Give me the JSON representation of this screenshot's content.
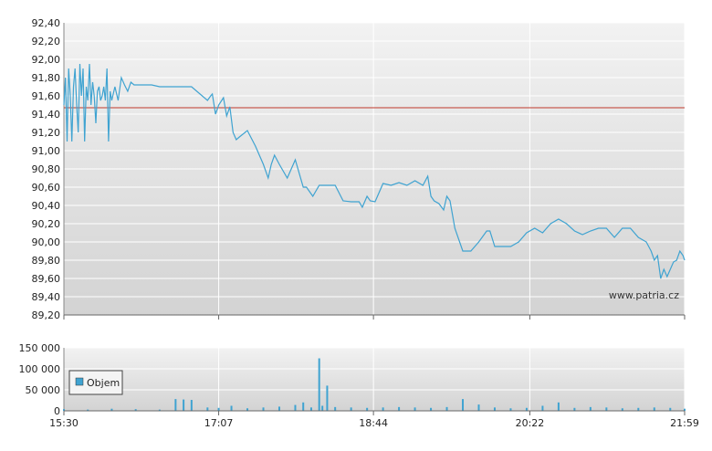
{
  "watermark": "www.patria.cz",
  "colors": {
    "price_line": "#3fa3d1",
    "reference_line": "#c0392b",
    "volume_bar": "#3fa3d1",
    "grid": "#ffffff",
    "plot_bg_top": "#f2f2f2",
    "plot_bg_bottom": "#d3d3d3"
  },
  "chart_data": [
    {
      "type": "line",
      "panel": "price",
      "ylim": [
        89.2,
        92.4
      ],
      "y_ticks": [
        "92,40",
        "92,20",
        "92,00",
        "91,80",
        "91,60",
        "91,40",
        "91,20",
        "91,00",
        "90,80",
        "90,60",
        "90,40",
        "90,20",
        "90,00",
        "89,80",
        "89,60",
        "89,40",
        "89,20"
      ],
      "x_ticks": [
        "15:30",
        "17:07",
        "18:44",
        "20:22",
        "21:59"
      ],
      "reference_value": 91.47,
      "series": [
        {
          "x": [
            "15:30",
            "15:31",
            "15:32",
            "15:33",
            "15:34",
            "15:35",
            "15:36",
            "15:37",
            "15:38",
            "15:39",
            "15:40",
            "15:41",
            "15:42",
            "15:43",
            "15:44",
            "15:45",
            "15:46",
            "15:47",
            "15:48",
            "15:49",
            "15:50",
            "15:51",
            "15:52",
            "15:53",
            "15:54",
            "15:55",
            "15:56",
            "15:57",
            "15:58",
            "15:59",
            "16:00",
            "16:02",
            "16:04",
            "16:06",
            "16:08",
            "16:10",
            "16:12",
            "16:14",
            "16:16",
            "16:20",
            "16:25",
            "16:30",
            "16:40",
            "16:50",
            "17:00",
            "17:02",
            "17:03",
            "17:05",
            "17:07",
            "17:10",
            "17:12",
            "17:14",
            "17:16",
            "17:18",
            "17:20",
            "17:25",
            "17:30",
            "17:35",
            "17:38",
            "17:40",
            "17:42",
            "17:45",
            "17:50",
            "17:55",
            "18:00",
            "18:02",
            "18:04",
            "18:06",
            "18:10",
            "18:15",
            "18:20",
            "18:25",
            "18:30",
            "18:35",
            "18:37",
            "18:40",
            "18:42",
            "18:45",
            "18:50",
            "18:55",
            "19:00",
            "19:05",
            "19:10",
            "19:15",
            "19:18",
            "19:20",
            "19:22",
            "19:25",
            "19:28",
            "19:30",
            "19:32",
            "19:35",
            "19:40",
            "19:45",
            "19:50",
            "19:55",
            "19:57",
            "20:00",
            "20:05",
            "20:10",
            "20:15",
            "20:20",
            "20:25",
            "20:30",
            "20:35",
            "20:40",
            "20:45",
            "20:50",
            "20:55",
            "21:00",
            "21:05",
            "21:10",
            "21:15",
            "21:20",
            "21:25",
            "21:30",
            "21:35",
            "21:38",
            "21:40",
            "21:42",
            "21:44",
            "21:46",
            "21:48",
            "21:50",
            "21:52",
            "21:54",
            "21:56",
            "21:58",
            "21:59"
          ],
          "y": [
            91.5,
            91.8,
            91.1,
            91.9,
            91.6,
            91.1,
            91.7,
            91.9,
            91.5,
            91.2,
            91.95,
            91.6,
            91.9,
            91.1,
            91.7,
            91.55,
            91.95,
            91.5,
            91.75,
            91.6,
            91.3,
            91.65,
            91.7,
            91.55,
            91.6,
            91.7,
            91.55,
            91.9,
            91.1,
            91.65,
            91.55,
            91.7,
            91.55,
            91.8,
            91.72,
            91.65,
            91.75,
            91.72,
            91.72,
            91.72,
            91.72,
            91.7,
            91.7,
            91.7,
            91.55,
            91.6,
            91.62,
            91.4,
            91.5,
            91.58,
            91.38,
            91.48,
            91.2,
            91.12,
            91.15,
            91.22,
            91.05,
            90.85,
            90.7,
            90.85,
            90.95,
            90.85,
            90.7,
            90.9,
            90.6,
            90.6,
            90.55,
            90.5,
            90.62,
            90.62,
            90.62,
            90.45,
            90.44,
            90.44,
            90.38,
            90.5,
            90.45,
            90.44,
            90.64,
            90.62,
            90.65,
            90.62,
            90.67,
            90.62,
            90.72,
            90.5,
            90.45,
            90.42,
            90.35,
            90.5,
            90.45,
            90.15,
            89.9,
            89.9,
            90.0,
            90.12,
            90.12,
            89.95,
            89.95,
            89.95,
            90.0,
            90.1,
            90.15,
            90.1,
            90.2,
            90.25,
            90.2,
            90.12,
            90.08,
            90.12,
            90.15,
            90.15,
            90.05,
            90.15,
            90.15,
            90.05,
            90.0,
            89.9,
            89.8,
            89.85,
            89.6,
            89.7,
            89.62,
            89.7,
            89.78,
            89.8,
            89.9,
            89.85,
            89.8
          ]
        }
      ]
    },
    {
      "type": "bar",
      "panel": "volume",
      "ylim": [
        0,
        150000
      ],
      "y_ticks": [
        "150 000",
        "100 000",
        "50 000",
        "0"
      ],
      "x_ticks": [
        "15:30",
        "17:07",
        "18:44",
        "20:22",
        "21:59"
      ],
      "legend": {
        "placement": "left",
        "label": "Objem"
      },
      "series": [
        {
          "name": "Objem",
          "x": [
            "15:30",
            "15:45",
            "16:00",
            "16:15",
            "16:30",
            "16:40",
            "16:45",
            "16:50",
            "17:00",
            "17:07",
            "17:15",
            "17:25",
            "17:35",
            "17:45",
            "17:55",
            "18:00",
            "18:05",
            "18:10",
            "18:12",
            "18:15",
            "18:20",
            "18:30",
            "18:40",
            "18:50",
            "19:00",
            "19:10",
            "19:20",
            "19:30",
            "19:40",
            "19:50",
            "20:00",
            "20:10",
            "20:20",
            "20:30",
            "20:40",
            "20:50",
            "21:00",
            "21:10",
            "21:20",
            "21:30",
            "21:40",
            "21:50",
            "21:59"
          ],
          "values": [
            4000,
            3000,
            5000,
            4000,
            3000,
            28000,
            27000,
            26000,
            8000,
            7000,
            12000,
            6000,
            8000,
            10000,
            14000,
            20000,
            8000,
            125000,
            12000,
            60000,
            9000,
            8000,
            7000,
            8000,
            9000,
            8000,
            7000,
            9000,
            28000,
            15000,
            8000,
            6000,
            7000,
            12000,
            20000,
            7000,
            9000,
            8000,
            6000,
            7000,
            8000,
            7000,
            5000
          ]
        }
      ]
    }
  ]
}
